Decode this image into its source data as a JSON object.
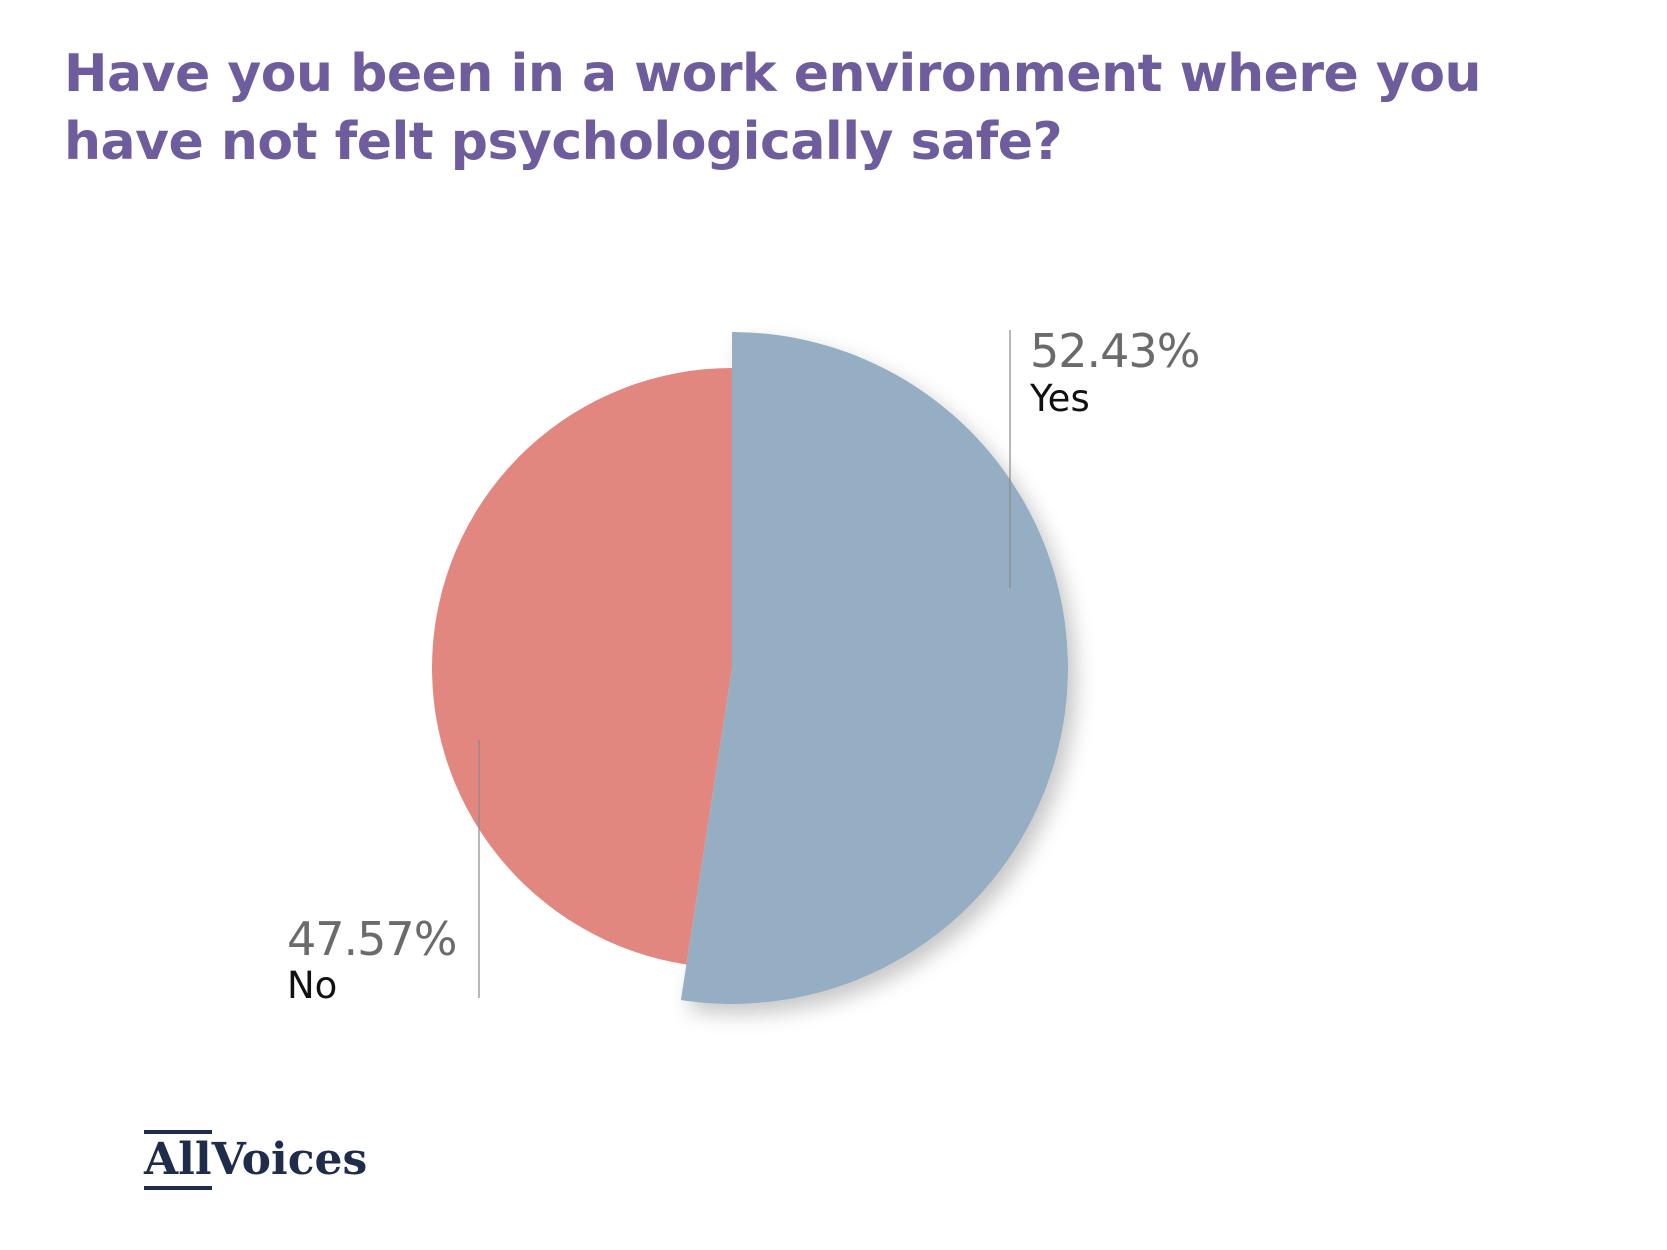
{
  "title": "Have you been in a work environment where you have not felt psychologically safe?",
  "chart_data": {
    "type": "pie",
    "title": "Have you been in a work environment where you have not felt psychologically safe?",
    "slices": [
      {
        "label": "Yes",
        "value": 52.43,
        "value_label": "52.43%",
        "color": "#95aec4",
        "exploded": true
      },
      {
        "label": "No",
        "value": 47.57,
        "value_label": "47.57%",
        "color": "#e28680",
        "exploded": false
      }
    ],
    "start_angle": "12 o'clock, clockwise"
  },
  "logo": {
    "part1": "All",
    "part2": "Voices",
    "color": "#1f2d4a"
  },
  "colors": {
    "title": "#6e5c9d",
    "value_label": "#6b6b6b",
    "category_label": "#111111",
    "leader_line": "#8a8a8a"
  }
}
